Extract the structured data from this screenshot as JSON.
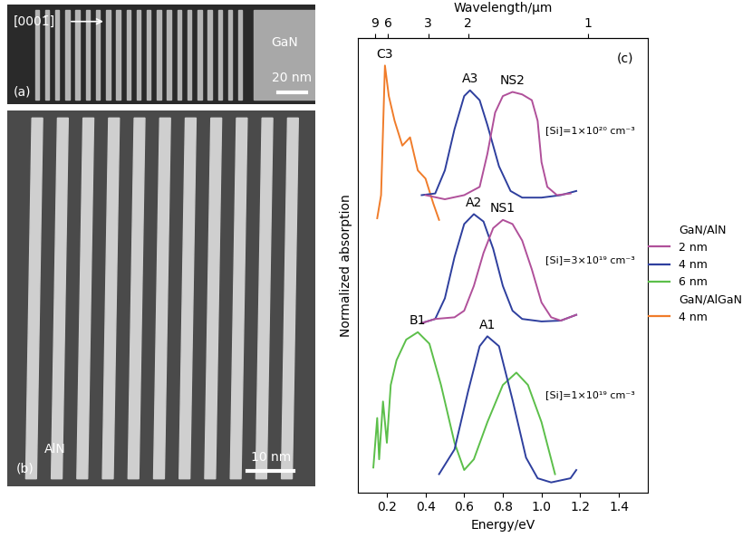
{
  "images": [
    {
      "panel_label": "(a)",
      "direction": "[0001̄]",
      "material": "GaN",
      "scale_bar": "20 nm"
    },
    {
      "panel_label": "(b)",
      "material": "AlN",
      "scale_bar": "10 nm"
    }
  ],
  "chart_data": {
    "type": "line",
    "panel_label": "(c)",
    "xlabel": "Energy/eV",
    "ylabel": "Normalized absorption",
    "xlim": [
      0.05,
      1.55
    ],
    "xticks": [
      0.2,
      0.4,
      0.6,
      0.8,
      1.0,
      1.2,
      1.4
    ],
    "ylim": [
      0,
      5.5
    ],
    "tick_labels": "x",
    "top_axis": {
      "label": "Wavelength/μm",
      "ticks": [
        9,
        6,
        3,
        2,
        1
      ]
    },
    "legend": "center right",
    "legend_groups": [
      {
        "title": "GaN/AlN",
        "entries": [
          "2 nm",
          "4 nm",
          "6 nm"
        ]
      },
      {
        "title": "GaN/AlGaN",
        "entries": [
          "4 nm"
        ]
      }
    ],
    "groups": [
      {
        "doping": "[Si]=1×10²⁰ cm⁻³",
        "series": [
          {
            "name": "4 nm",
            "group": "GaN/AlGaN",
            "color": "#f07c2a",
            "peak_label": "C3",
            "x": [
              0.15,
              0.17,
              0.19,
              0.21,
              0.24,
              0.28,
              0.32,
              0.36,
              0.4,
              0.44,
              0.47
            ],
            "values": [
              3.32,
              3.6,
              5.17,
              4.8,
              4.5,
              4.2,
              4.3,
              3.9,
              3.8,
              3.5,
              3.3
            ]
          },
          {
            "name": "4 nm",
            "group": "GaN/AlN",
            "color": "#2e3f9e",
            "peak_label": "A3",
            "x": [
              0.38,
              0.45,
              0.5,
              0.55,
              0.6,
              0.63,
              0.68,
              0.72,
              0.78,
              0.84,
              0.9,
              1.0,
              1.1,
              1.18
            ],
            "values": [
              3.6,
              3.62,
              3.9,
              4.4,
              4.8,
              4.87,
              4.75,
              4.45,
              3.95,
              3.65,
              3.57,
              3.57,
              3.6,
              3.65
            ]
          },
          {
            "name": "2 nm",
            "group": "GaN/AlN",
            "color": "#b0509a",
            "peak_label": "NS2",
            "x": [
              0.4,
              0.5,
              0.6,
              0.68,
              0.72,
              0.76,
              0.8,
              0.85,
              0.9,
              0.95,
              0.98,
              1.0,
              1.03,
              1.08,
              1.15
            ],
            "values": [
              3.6,
              3.55,
              3.6,
              3.7,
              4.1,
              4.6,
              4.8,
              4.85,
              4.82,
              4.75,
              4.5,
              4.0,
              3.7,
              3.6,
              3.62
            ]
          }
        ]
      },
      {
        "doping": "[Si]=3×10¹⁹ cm⁻³",
        "series": [
          {
            "name": "4 nm",
            "group": "GaN/AlN",
            "color": "#2e3f9e",
            "peak_label": "A2",
            "x": [
              0.38,
              0.45,
              0.5,
              0.55,
              0.6,
              0.65,
              0.7,
              0.75,
              0.8,
              0.85,
              0.9,
              1.0,
              1.1,
              1.18
            ],
            "values": [
              2.05,
              2.1,
              2.35,
              2.85,
              3.25,
              3.37,
              3.28,
              2.95,
              2.5,
              2.2,
              2.1,
              2.07,
              2.08,
              2.15
            ]
          },
          {
            "name": "2 nm",
            "group": "GaN/AlN",
            "color": "#b0509a",
            "peak_label": "NS1",
            "x": [
              0.38,
              0.45,
              0.55,
              0.6,
              0.65,
              0.7,
              0.75,
              0.8,
              0.85,
              0.9,
              0.95,
              1.0,
              1.05,
              1.1,
              1.18
            ],
            "values": [
              2.05,
              2.1,
              2.12,
              2.2,
              2.5,
              2.9,
              3.2,
              3.3,
              3.25,
              3.05,
              2.7,
              2.3,
              2.12,
              2.08,
              2.15
            ]
          }
        ]
      },
      {
        "doping": "[Si]=1×10¹⁹ cm⁻³",
        "series": [
          {
            "name": "6 nm",
            "group": "GaN/AlN",
            "color": "#5cbf4a",
            "peak_label": "B1",
            "x": [
              0.13,
              0.15,
              0.16,
              0.18,
              0.2,
              0.22,
              0.25,
              0.3,
              0.36,
              0.42,
              0.48,
              0.55,
              0.6,
              0.65,
              0.72,
              0.8,
              0.87,
              0.93,
              1.0,
              1.05,
              1.07
            ],
            "values": [
              0.3,
              0.9,
              0.4,
              1.1,
              0.6,
              1.3,
              1.6,
              1.85,
              1.94,
              1.8,
              1.3,
              0.6,
              0.27,
              0.4,
              0.85,
              1.3,
              1.45,
              1.3,
              0.85,
              0.4,
              0.22
            ]
          },
          {
            "name": "4 nm",
            "group": "GaN/AlN",
            "color": "#2e3f9e",
            "peak_label": "A1",
            "x": [
              0.47,
              0.55,
              0.62,
              0.68,
              0.72,
              0.78,
              0.85,
              0.92,
              0.98,
              1.05,
              1.15,
              1.18
            ],
            "values": [
              0.22,
              0.52,
              1.22,
              1.77,
              1.89,
              1.77,
              1.12,
              0.42,
              0.17,
              0.12,
              0.17,
              0.27
            ]
          }
        ]
      }
    ]
  }
}
